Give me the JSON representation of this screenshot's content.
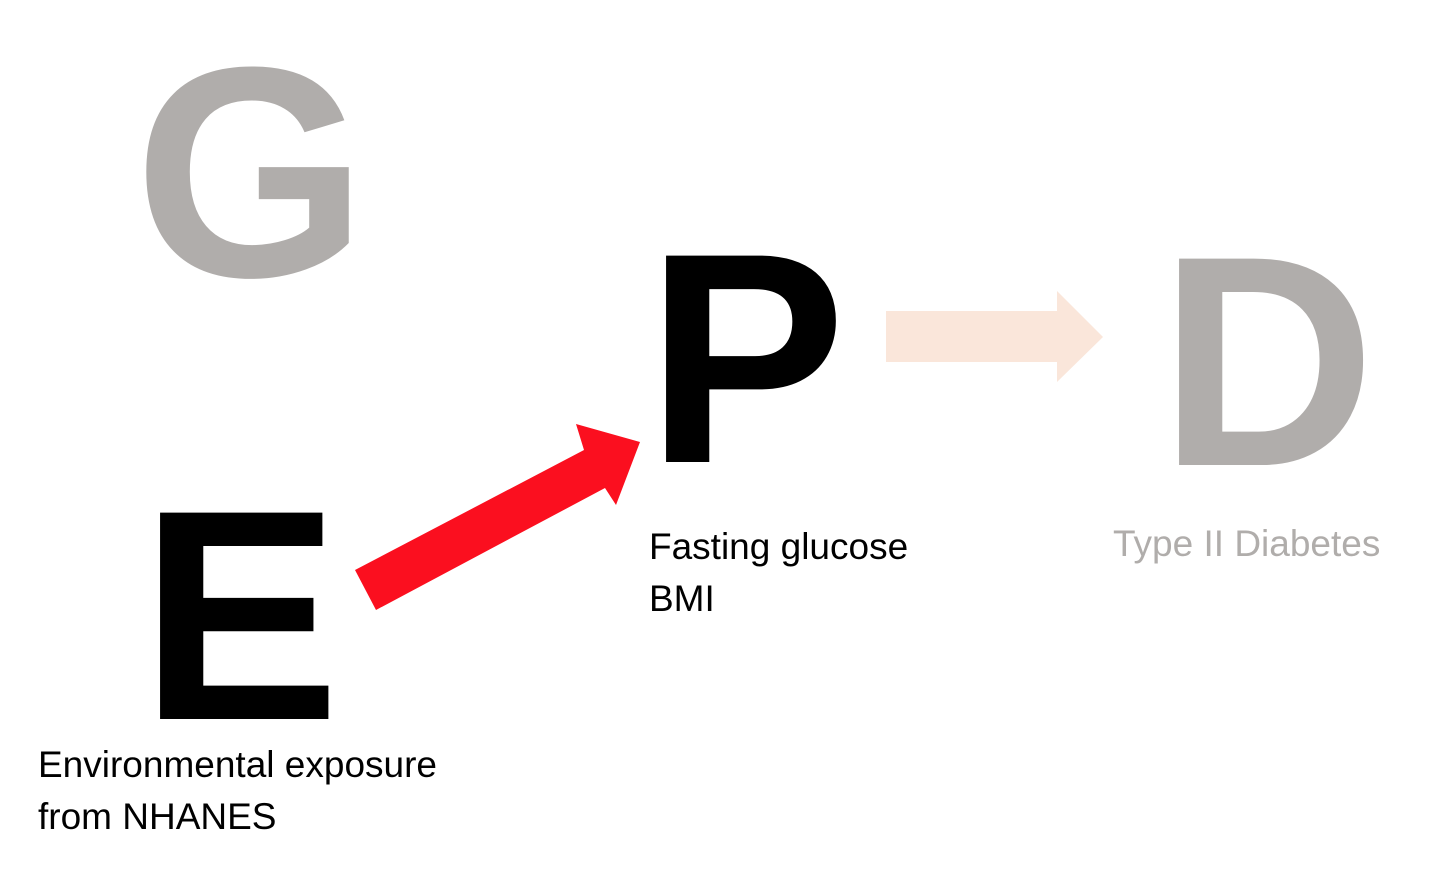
{
  "nodes": {
    "genetics": {
      "letter": "G",
      "color": "#b0adab"
    },
    "phenotype": {
      "letter": "P",
      "color": "#000000",
      "caption": [
        "Fasting glucose",
        "BMI"
      ],
      "caption_color": "#000000"
    },
    "disease": {
      "letter": "D",
      "color": "#b0adab",
      "caption": [
        "Type II Diabetes"
      ],
      "caption_color": "#b0adab"
    },
    "exposure": {
      "letter": "E",
      "color": "#000000",
      "caption": [
        "Environmental exposure",
        "from NHANES"
      ],
      "caption_color": "#000000"
    }
  },
  "edges": {
    "exposure_to_phenotype": {
      "from": "E",
      "to": "P",
      "color": "#fb0f1f"
    },
    "phenotype_to_disease": {
      "from": "P",
      "to": "D",
      "color": "#fae6da"
    }
  }
}
